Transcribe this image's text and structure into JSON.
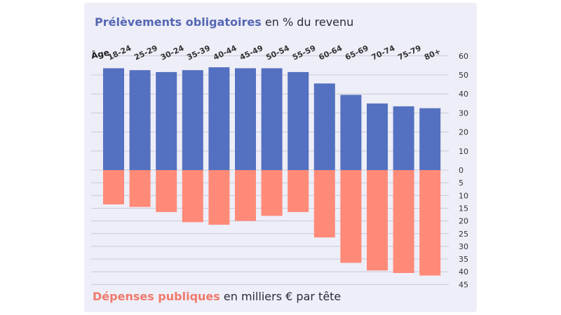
{
  "chart_data": {
    "type": "bar",
    "top": {
      "title_highlight": "Prélèvements obligatoires",
      "title_rest": " en % du revenu",
      "color": "#5470c0",
      "ticks": [
        "60",
        "50",
        "40",
        "30",
        "20",
        "10",
        "0"
      ],
      "ylim": [
        0,
        60
      ]
    },
    "bottom": {
      "title_highlight": "Dépenses publiques",
      "title_rest": " en milliers € par tête",
      "color": "#ff8a78",
      "ticks": [
        "5",
        "10",
        "15",
        "20",
        "25",
        "30",
        "35",
        "40",
        "45"
      ],
      "ylim": [
        0,
        45
      ]
    },
    "xlabel": "Âge",
    "categories": [
      "18-24",
      "25-29",
      "30-24",
      "35-39",
      "40-44",
      "45-49",
      "50-54",
      "55-59",
      "60-64",
      "65-69",
      "70-74",
      "75-79",
      "80+"
    ],
    "series": [
      {
        "name": "Prélèvements obligatoires",
        "values": [
          53.5,
          52.5,
          51.5,
          52.5,
          54,
          53.5,
          53.5,
          51.5,
          45.5,
          39.5,
          35,
          33.5,
          32.5
        ]
      },
      {
        "name": "Dépenses publiques",
        "values": [
          13.5,
          14.5,
          16.5,
          20.5,
          21.5,
          20,
          18,
          16.5,
          26.5,
          36.5,
          39.5,
          40.5,
          41.5
        ]
      }
    ]
  }
}
